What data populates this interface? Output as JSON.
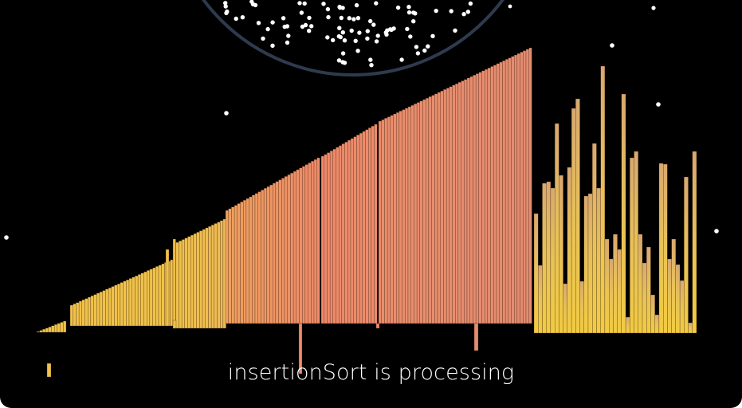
{
  "visualizer": {
    "algorithm": "insertionSort",
    "status_text": "insertionSort is processing",
    "array_size": 245
  },
  "colors": {
    "background": "#000000",
    "planet_stroke": "#2e3b4e",
    "star": "#ffffff",
    "bar_yellow": "#f0c24a",
    "bar_orange": "#eea05e",
    "bar_coral": "#ee8a6a",
    "bar_salmon": "#e48c70"
  }
}
